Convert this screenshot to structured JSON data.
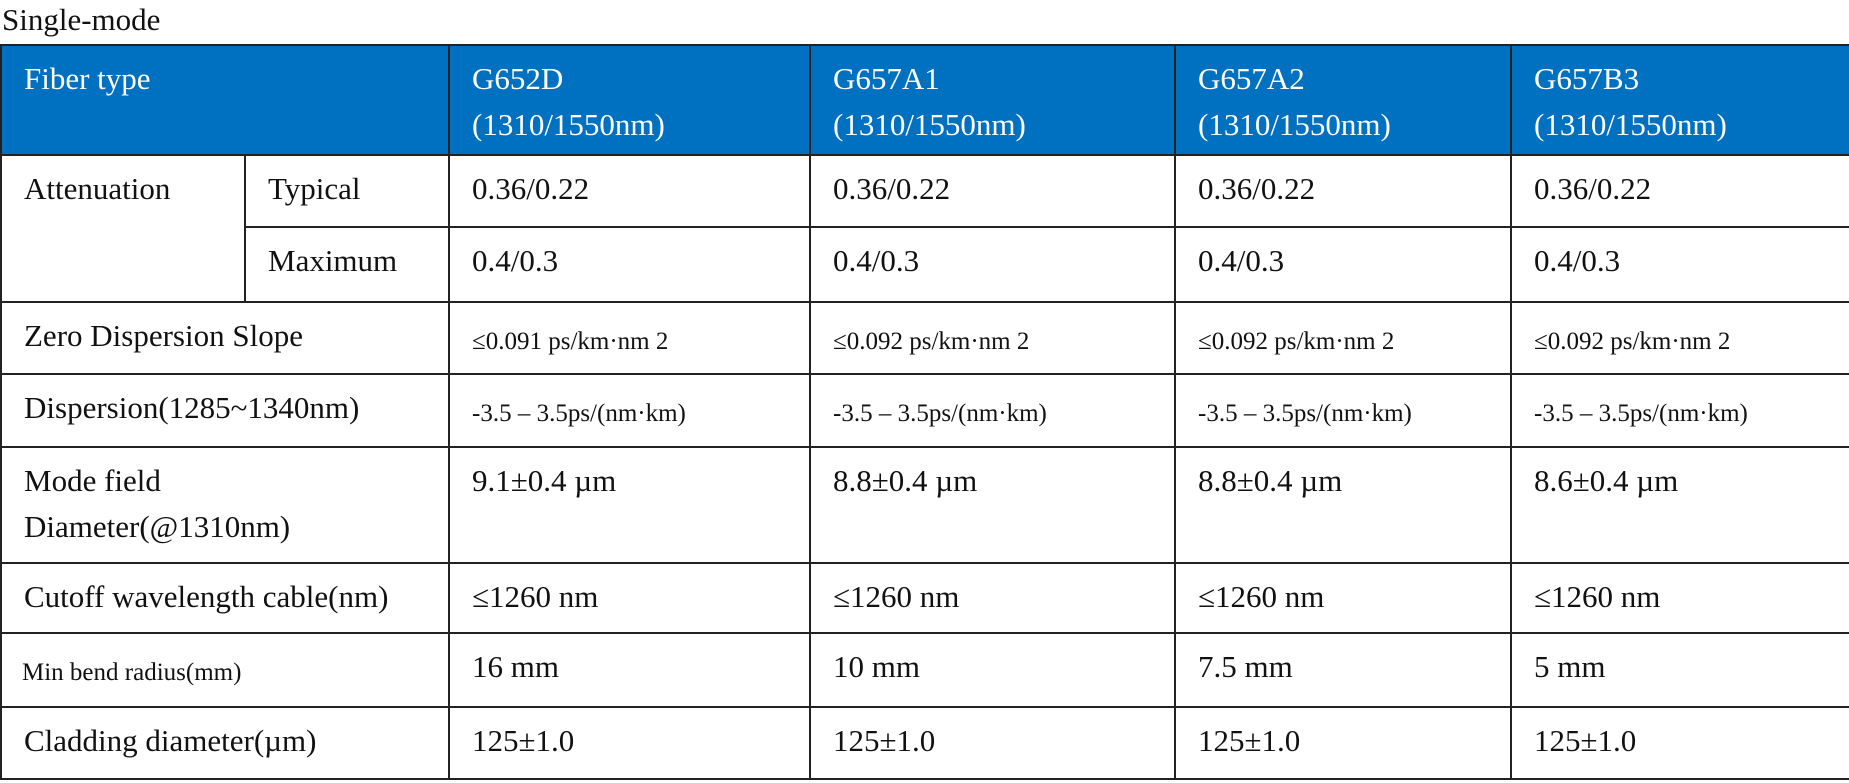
{
  "title": "Single-mode",
  "table": {
    "header": [
      [
        "Fiber type"
      ],
      [
        "G652D",
        "(1310/1550nm)"
      ],
      [
        "G657A1",
        "(1310/1550nm)"
      ],
      [
        "G657A2",
        "(1310/1550nm)"
      ],
      [
        "G657B3",
        "(1310/1550nm)"
      ]
    ],
    "rows": [
      [
        [
          "Attenuation"
        ],
        [
          "Typical"
        ],
        [
          "0.36/0.22"
        ],
        [
          "0.36/0.22"
        ],
        [
          "0.36/0.22"
        ],
        [
          "0.36/0.22"
        ]
      ],
      [
        [
          "Maximum"
        ],
        [
          "0.4/0.3"
        ],
        [
          "0.4/0.3"
        ],
        [
          "0.4/0.3"
        ],
        [
          "0.4/0.3"
        ]
      ],
      [
        [
          "Zero Dispersion Slope"
        ],
        [
          "≤0.091 ps/km·nm 2"
        ],
        [
          "≤0.092 ps/km·nm 2"
        ],
        [
          "≤0.092 ps/km·nm 2"
        ],
        [
          "≤0.092 ps/km·nm 2"
        ]
      ],
      [
        [
          "Dispersion(1285~1340nm)"
        ],
        [
          "-3.5 – 3.5ps/(nm·km)"
        ],
        [
          "-3.5 – 3.5ps/(nm·km)"
        ],
        [
          "-3.5 – 3.5ps/(nm·km)"
        ],
        [
          "-3.5 – 3.5ps/(nm·km)"
        ]
      ],
      [
        [
          "Mode field",
          "Diameter(@1310nm)"
        ],
        [
          "9.1±0.4 µm"
        ],
        [
          "8.8±0.4 µm"
        ],
        [
          "8.8±0.4 µm"
        ],
        [
          "8.6±0.4 µm"
        ]
      ],
      [
        [
          "Cutoff wavelength cable(nm)"
        ],
        [
          "≤1260 nm"
        ],
        [
          "≤1260 nm"
        ],
        [
          "≤1260 nm"
        ],
        [
          "≤1260 nm"
        ]
      ],
      [
        [
          "Min bend radius(mm)"
        ],
        [
          "16 mm"
        ],
        [
          "10 mm"
        ],
        [
          "7.5 mm"
        ],
        [
          "5 mm"
        ]
      ],
      [
        [
          "Cladding diameter(µm)"
        ],
        [
          "125±1.0"
        ],
        [
          "125±1.0"
        ],
        [
          "125±1.0"
        ],
        [
          "125±1.0"
        ]
      ]
    ]
  }
}
